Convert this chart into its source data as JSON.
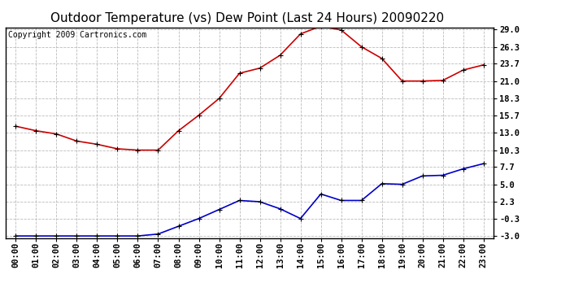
{
  "title": "Outdoor Temperature (vs) Dew Point (Last 24 Hours) 20090220",
  "copyright": "Copyright 2009 Cartronics.com",
  "hours": [
    "00:00",
    "01:00",
    "02:00",
    "03:00",
    "04:00",
    "05:00",
    "06:00",
    "07:00",
    "08:00",
    "09:00",
    "10:00",
    "11:00",
    "12:00",
    "13:00",
    "14:00",
    "15:00",
    "16:00",
    "17:00",
    "18:00",
    "19:00",
    "20:00",
    "21:00",
    "22:00",
    "23:00"
  ],
  "temp": [
    14.0,
    13.3,
    12.8,
    11.7,
    11.2,
    10.5,
    10.3,
    10.3,
    13.3,
    15.7,
    18.3,
    22.2,
    23.0,
    25.0,
    28.3,
    29.5,
    28.9,
    26.3,
    24.5,
    21.0,
    21.0,
    21.1,
    22.7,
    23.5
  ],
  "dew": [
    -3.0,
    -3.0,
    -3.0,
    -3.0,
    -3.0,
    -3.0,
    -3.0,
    -2.7,
    -1.5,
    -0.3,
    1.1,
    2.5,
    2.3,
    1.2,
    -0.3,
    3.5,
    2.5,
    2.5,
    5.1,
    5.0,
    6.3,
    6.4,
    7.4,
    8.2
  ],
  "yticks": [
    29.0,
    26.3,
    23.7,
    21.0,
    18.3,
    15.7,
    13.0,
    10.3,
    7.7,
    5.0,
    2.3,
    -0.3,
    -3.0
  ],
  "ylim_min": -3.0,
  "ylim_max": 29.0,
  "temp_color": "#cc0000",
  "dew_color": "#0000cc",
  "bg_color": "#ffffff",
  "grid_color": "#bbbbbb",
  "title_fontsize": 11,
  "tick_fontsize": 7.5,
  "copyright_fontsize": 7
}
